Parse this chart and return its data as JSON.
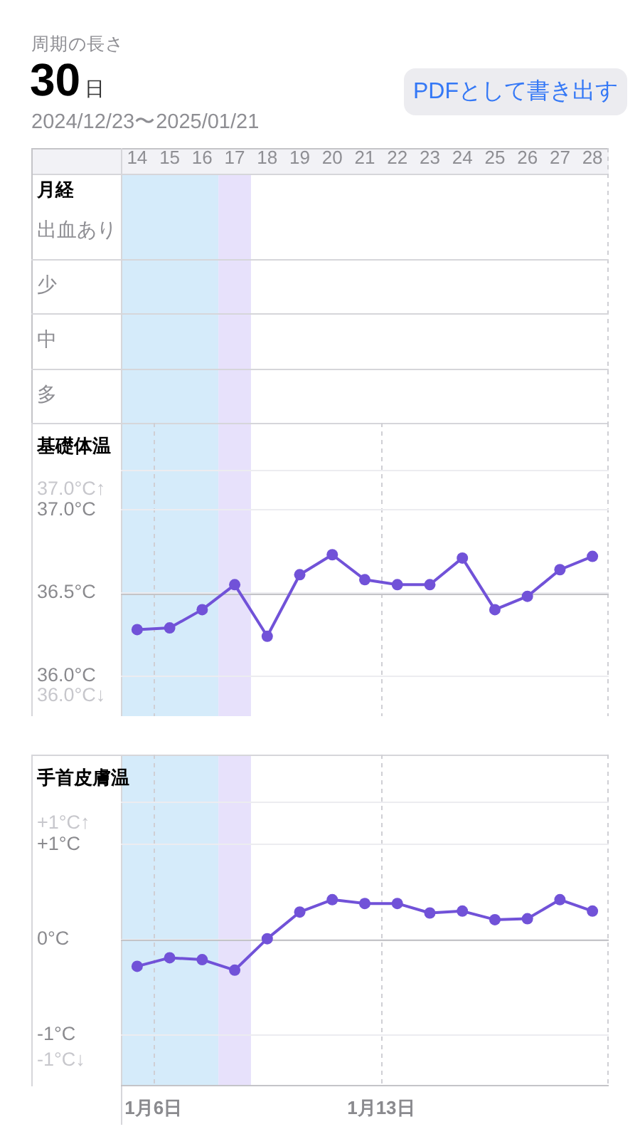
{
  "chart_data": [
    {
      "type": "other",
      "title": "周期の長さ",
      "subtitle": "2024/12/23〜2025/01/21",
      "annotations": [
        "30日",
        "PDFとして書き出す"
      ]
    },
    {
      "type": "heatmap",
      "title": "月経",
      "categories": [
        "14",
        "15",
        "16",
        "17",
        "18",
        "19",
        "20",
        "21",
        "22",
        "23",
        "24",
        "25",
        "26",
        "27",
        "28"
      ],
      "y_categories": [
        "出血あり",
        "少",
        "中",
        "多"
      ],
      "cells": [
        [
          null,
          null,
          null,
          null,
          null,
          null,
          null,
          null,
          null,
          null,
          null,
          null,
          null,
          null,
          null
        ],
        [
          null,
          null,
          null,
          null,
          null,
          null,
          null,
          null,
          null,
          null,
          null,
          null,
          null,
          null,
          null
        ],
        [
          null,
          null,
          null,
          null,
          null,
          null,
          null,
          null,
          null,
          null,
          null,
          null,
          null,
          null,
          null
        ],
        [
          null,
          null,
          null,
          null,
          null,
          null,
          null,
          null,
          null,
          null,
          null,
          null,
          null,
          null,
          null
        ]
      ],
      "bands": [
        {
          "axis": "x",
          "from": "14",
          "to": "16",
          "color": "#d5ebfa"
        },
        {
          "axis": "x",
          "from": "17",
          "to": "17",
          "color": "#e7e1fb"
        }
      ]
    },
    {
      "type": "line",
      "title": "基礎体温",
      "x": [
        "2025-01-05T12:00",
        "2025-01-06T12:00",
        "2025-01-07T12:00",
        "2025-01-08T12:00",
        "2025-01-09T12:00",
        "2025-01-10T12:00",
        "2025-01-11T12:00",
        "2025-01-12T12:00",
        "2025-01-13T12:00",
        "2025-01-14T12:00",
        "2025-01-15T12:00",
        "2025-01-16T12:00",
        "2025-01-17T12:00",
        "2025-01-18T12:00",
        "2025-01-19T12:00"
      ],
      "series": [
        {
          "color": "#7152d8",
          "values": [
            36.28,
            36.29,
            36.4,
            36.55,
            36.24,
            36.61,
            36.73,
            36.58,
            36.55,
            36.55,
            36.71,
            36.4,
            36.48,
            36.64,
            36.72
          ]
        }
      ],
      "xlim": [
        "2025-01-05",
        "2025-01-20"
      ],
      "xticks": [
        {
          "value": "2025-01-06",
          "label": null
        },
        {
          "value": "2025-01-13",
          "label": null
        },
        {
          "value": "2025-01-20",
          "label": null
        }
      ],
      "ylim": [
        35.76,
        37.24
      ],
      "yticks": [
        {
          "value": 37,
          "label": "37.0°C"
        },
        {
          "value": 36.5,
          "label": "36.5°C"
        },
        {
          "value": 36,
          "label": "36.0°C"
        }
      ],
      "tick_labels": "y",
      "grid": true,
      "marker": "circle",
      "line_style": "solid",
      "bands": [
        {
          "axis": "x",
          "from": "2025-01-05",
          "to": "2025-01-08",
          "color": "#d5ebfa"
        },
        {
          "axis": "x",
          "from": "2025-01-08",
          "to": "2025-01-09",
          "color": "#e7e1fb"
        }
      ],
      "ref_lines": [
        {
          "axis": "y",
          "value": 36.5,
          "color": "#c4c4c8",
          "line_style": "solid"
        }
      ],
      "annotations": [
        "37.0°C↑",
        "36.0°C↓"
      ]
    },
    {
      "type": "line",
      "title": "手首皮膚温",
      "x": [
        "2025-01-05T12:00",
        "2025-01-06T12:00",
        "2025-01-07T12:00",
        "2025-01-08T12:00",
        "2025-01-09T12:00",
        "2025-01-10T12:00",
        "2025-01-11T12:00",
        "2025-01-12T12:00",
        "2025-01-13T12:00",
        "2025-01-14T12:00",
        "2025-01-15T12:00",
        "2025-01-16T12:00",
        "2025-01-17T12:00",
        "2025-01-18T12:00",
        "2025-01-19T12:00"
      ],
      "series": [
        {
          "color": "#7152d8",
          "values": [
            -0.28,
            -0.19,
            -0.21,
            -0.32,
            0.01,
            0.29,
            0.42,
            0.38,
            0.38,
            0.28,
            0.3,
            0.21,
            0.22,
            0.42,
            0.3
          ]
        }
      ],
      "xlim": [
        "2025-01-05",
        "2025-01-20"
      ],
      "xticks": [
        {
          "value": "2025-01-06",
          "label": "1月6日"
        },
        {
          "value": "2025-01-13",
          "label": "1月13日"
        },
        {
          "value": "2025-01-20",
          "label": null
        }
      ],
      "ylim": [
        -1.54,
        1.45
      ],
      "yticks": [
        {
          "value": 1,
          "label": "+1°C"
        },
        {
          "value": 0,
          "label": "0°C"
        },
        {
          "value": -1,
          "label": "-1°C"
        }
      ],
      "grid": true,
      "marker": "circle",
      "line_style": "solid",
      "bands": [
        {
          "axis": "x",
          "from": "2025-01-05",
          "to": "2025-01-08",
          "color": "#d5ebfa"
        },
        {
          "axis": "x",
          "from": "2025-01-08",
          "to": "2025-01-09",
          "color": "#e7e1fb"
        }
      ],
      "ref_lines": [
        {
          "axis": "y",
          "value": 0,
          "color": "#c4c4c8",
          "line_style": "solid"
        }
      ],
      "annotations": [
        "+1°C↑",
        "-1°C↓"
      ]
    }
  ]
}
